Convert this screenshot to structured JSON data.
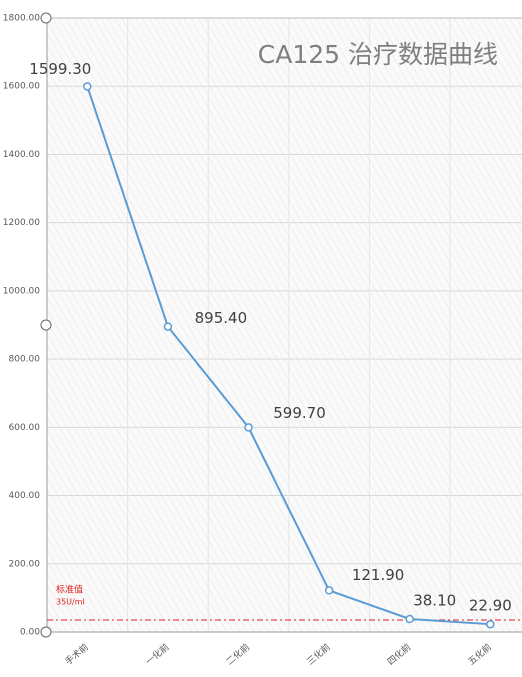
{
  "chart_data": {
    "type": "line",
    "title": "CA125 治疗数据曲线",
    "categories": [
      "手术前",
      "一化前",
      "二化前",
      "三化前",
      "四化前",
      "五化前"
    ],
    "series": [
      {
        "color": "#5b9bd5",
        "values": [
          1599.3,
          895.4,
          599.7,
          121.9,
          38.1,
          22.9
        ],
        "value_labels": [
          "1599.30",
          "895.40",
          "599.70",
          "121.90",
          "38.10",
          "22.90"
        ]
      }
    ],
    "ylim": [
      0,
      1800
    ],
    "yticks": [
      {
        "value": 0,
        "label": "0.00"
      },
      {
        "value": 200,
        "label": "200.00"
      },
      {
        "value": 400,
        "label": "400.00"
      },
      {
        "value": 600,
        "label": "600.00"
      },
      {
        "value": 800,
        "label": "800.00"
      },
      {
        "value": 1000,
        "label": "1000.00"
      },
      {
        "value": 1200,
        "label": "1200.00"
      },
      {
        "value": 1400,
        "label": "1400.00"
      },
      {
        "value": 1600,
        "label": "1600.00"
      },
      {
        "value": 1800,
        "label": "1800.00"
      }
    ],
    "grid": true,
    "reference_line": {
      "value": 35,
      "color": "#e02020",
      "label": "标准值",
      "sublabel": "35U/ml"
    }
  }
}
